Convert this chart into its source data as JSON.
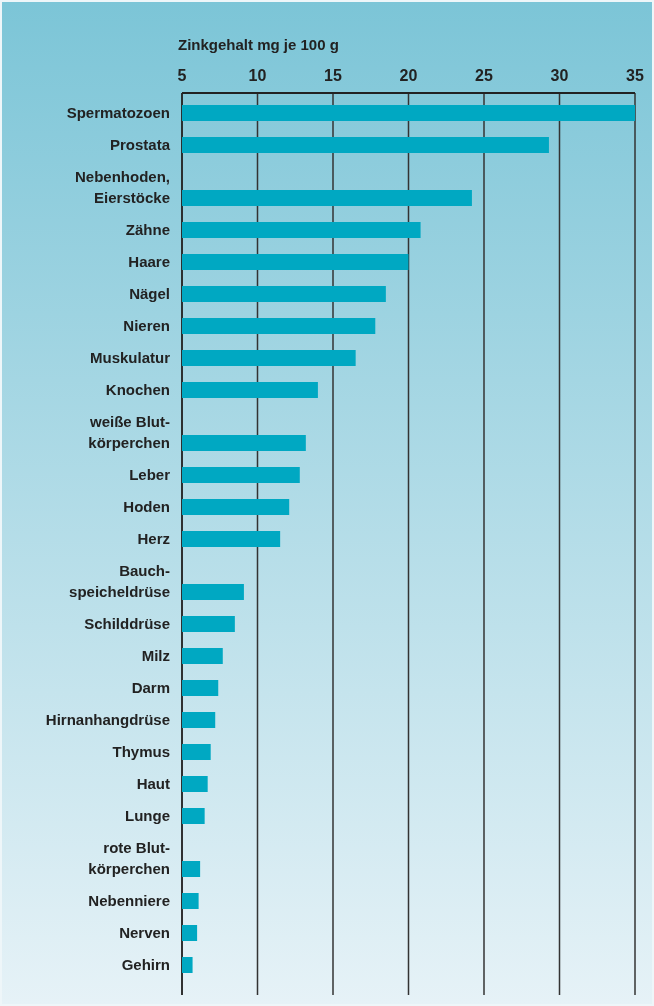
{
  "chart_data": {
    "type": "bar",
    "orientation": "horizontal",
    "xlabel": "Zinkgehalt mg je 100 g",
    "categories": [
      "Spermatozoen",
      "Prostata",
      "Nebenhoden,\nEierstöcke",
      "Zähne",
      "Haare",
      "Nägel",
      "Nieren",
      "Muskulatur",
      "Knochen",
      "weiße Blut-\nkörperchen",
      "Leber",
      "Hoden",
      "Herz",
      "Bauch-\nspeicheldrüse",
      "Schilddrüse",
      "Milz",
      "Darm",
      "Hirnanhangdrüse",
      "Thymus",
      "Haut",
      "Lunge",
      "rote Blut-\nkörperchen",
      "Nebenniere",
      "Nerven",
      "Gehirn"
    ],
    "values": [
      35,
      29.3,
      24.2,
      20.8,
      20.0,
      18.5,
      17.8,
      16.5,
      14.0,
      13.2,
      12.8,
      12.1,
      11.5,
      9.1,
      8.5,
      7.7,
      7.4,
      7.2,
      6.9,
      6.7,
      6.5,
      6.2,
      6.1,
      6.0,
      5.7
    ],
    "color": "#00a8c2",
    "xlim": [
      5,
      35
    ],
    "xticks": [
      5,
      10,
      15,
      20,
      25,
      30,
      35
    ],
    "grid": "x"
  }
}
